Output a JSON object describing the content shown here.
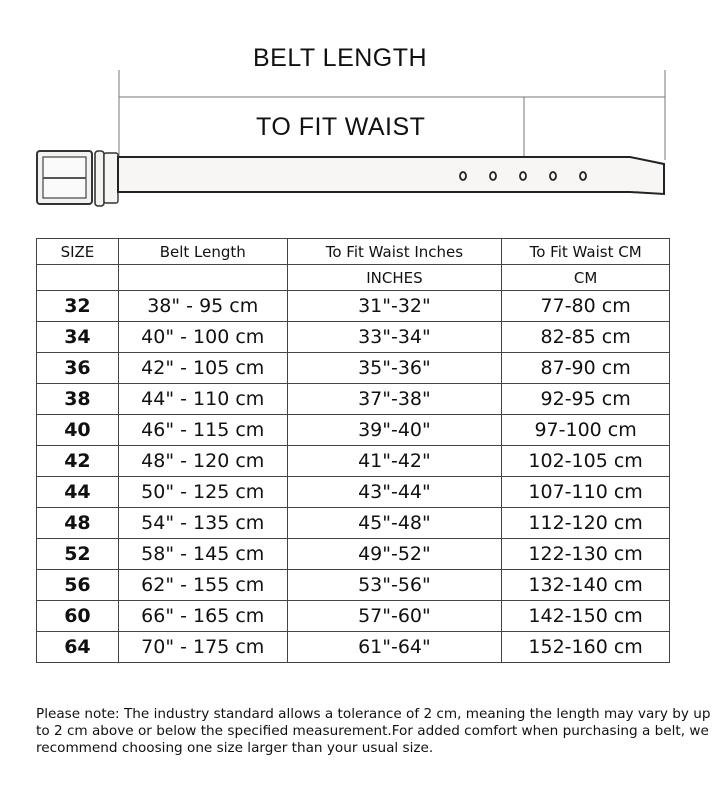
{
  "diagram": {
    "belt_length_label": "BELT LENGTH",
    "to_fit_waist_label": "TO FIT WAIST",
    "belt_holes": 5
  },
  "table": {
    "headers": [
      "SIZE",
      "Belt Length",
      "To Fit Waist Inches",
      "To Fit Waist CM"
    ],
    "subheaders": [
      "",
      "",
      "INCHES",
      "CM"
    ],
    "rows": [
      [
        "32",
        "38\" -  95 cm",
        "31\"-32\"",
        "77-80 cm"
      ],
      [
        "34",
        "40\" - 100 cm",
        "33\"-34\"",
        "82-85 cm"
      ],
      [
        "36",
        "42\" - 105 cm",
        "35\"-36\"",
        "87-90 cm"
      ],
      [
        "38",
        "44\" - 110 cm",
        "37\"-38\"",
        "92-95 cm"
      ],
      [
        "40",
        "46\" - 115 cm",
        "39\"-40\"",
        "97-100 cm"
      ],
      [
        "42",
        "48\" - 120 cm",
        "41\"-42\"",
        "102-105 cm"
      ],
      [
        "44",
        "50\" - 125 cm",
        "43\"-44\"",
        "107-110 cm"
      ],
      [
        "48",
        "54\" - 135 cm",
        "45\"-48\"",
        "112-120 cm"
      ],
      [
        "52",
        "58\" - 145 cm",
        "49\"-52\"",
        "122-130 cm"
      ],
      [
        "56",
        "62\" - 155 cm",
        "53\"-56\"",
        "132-140 cm"
      ],
      [
        "60",
        "66\" - 165 cm",
        "57\"-60\"",
        "142-150 cm"
      ],
      [
        "64",
        "70\" - 175 cm",
        "61\"-64\"",
        "152-160 cm"
      ]
    ]
  },
  "note": "Please note: The industry standard allows a tolerance of 2 cm, meaning the length may vary by up to 2 cm above or below the specified measurement.For added comfort when purchasing a belt, we recommend choosing one size larger than your usual size."
}
